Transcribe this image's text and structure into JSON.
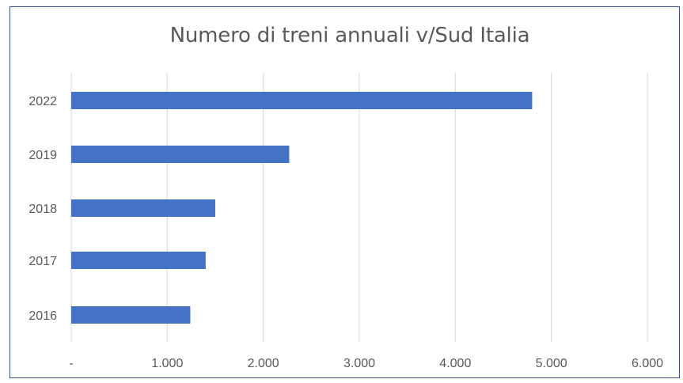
{
  "chart_data": {
    "type": "bar",
    "orientation": "horizontal",
    "title": "Numero di treni annuali v/Sud Italia",
    "categories": [
      "2022",
      "2019",
      "2018",
      "2017",
      "2016"
    ],
    "values": [
      4800,
      2270,
      1500,
      1400,
      1240
    ],
    "xlim": [
      0,
      6000
    ],
    "x_ticks": [
      0,
      1000,
      2000,
      3000,
      4000,
      5000,
      6000
    ],
    "x_tick_labels": [
      "-",
      "1.000",
      "2.000",
      "3.000",
      "4.000",
      "5.000",
      "6.000"
    ],
    "xlabel": "",
    "ylabel": "",
    "grid": "vertical",
    "legend": "none",
    "bar_color": "#4472c4",
    "grid_color": "#d9d9d9",
    "tick_label_color": "#595959"
  }
}
